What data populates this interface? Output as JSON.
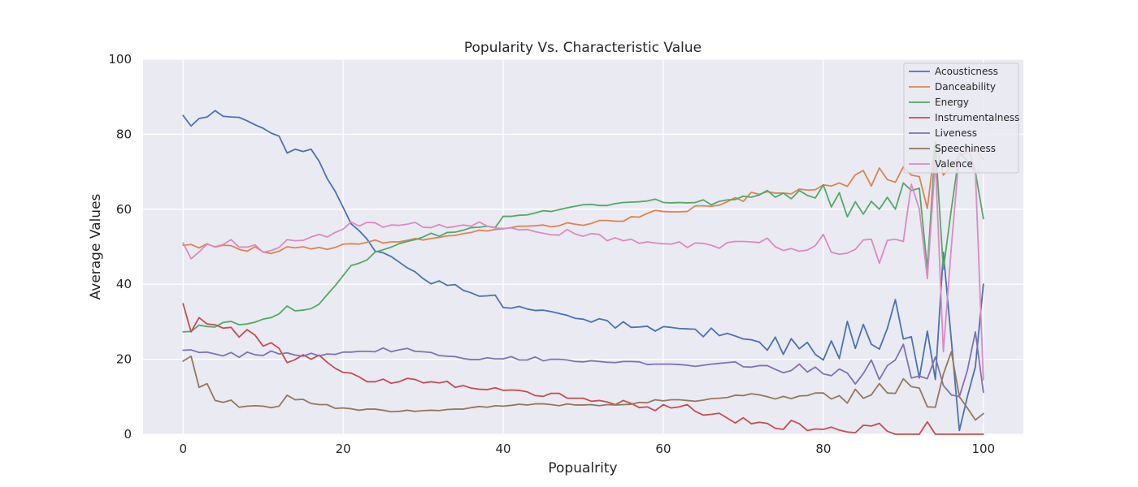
{
  "chart_data": {
    "type": "line",
    "title": "Popularity Vs. Characteristic Value",
    "xlabel": "Popualrity",
    "ylabel": "Average Values",
    "xlim": [
      -5,
      105
    ],
    "ylim": [
      0,
      100
    ],
    "xticks": [
      0,
      20,
      40,
      60,
      80,
      100
    ],
    "yticks": [
      0,
      20,
      40,
      60,
      80,
      100
    ],
    "grid": true,
    "legend_position": "top-right",
    "series": [
      {
        "name": "Acousticness",
        "color": "#4c72b0",
        "values": [
          85,
          82.2,
          84.2,
          84.6,
          86.3,
          84.8,
          84.6,
          84.5,
          83.6,
          82.5,
          81.6,
          80.3,
          79.5,
          75,
          76,
          75.4,
          76,
          72.8,
          68.2,
          64.8,
          60.5,
          56.1,
          54.3,
          52,
          48.8,
          48.4,
          47.4,
          45.9,
          44.4,
          43.3,
          41.5,
          40.1,
          40.9,
          39.7,
          39.9,
          38.4,
          37.7,
          36.8,
          36.9,
          37.1,
          33.8,
          33.6,
          34.1,
          33.4,
          33,
          33.1,
          32.7,
          32.2,
          31.7,
          30.9,
          30.7,
          29.9,
          30.8,
          30.3,
          28.3,
          30,
          28.5,
          28.6,
          28.8,
          27.5,
          28.7,
          28.5,
          28.2,
          28.1,
          28,
          26,
          28.3,
          26.3,
          26.9,
          26.2,
          25.4,
          25.2,
          24.6,
          22.4,
          25.9,
          21.3,
          25.5,
          22.8,
          24.5,
          21.3,
          19.8,
          24.9,
          20.2,
          30.1,
          22.9,
          29.3,
          24,
          22.7,
          28.2,
          35.9,
          25.4,
          26,
          15,
          27.5,
          14.6,
          48.5,
          25,
          1,
          10,
          18,
          40
        ]
      },
      {
        "name": "Danceability",
        "color": "#dd8452",
        "values": [
          50.4,
          50.6,
          49.7,
          50.8,
          49.9,
          50.4,
          50.3,
          49.3,
          48.8,
          50,
          48.6,
          48.2,
          48.8,
          50,
          49.7,
          50,
          49.4,
          49.8,
          49.3,
          49.8,
          50.7,
          50.8,
          50.7,
          51.2,
          51.8,
          51,
          51.3,
          51.3,
          51.7,
          52.2,
          51.8,
          52.2,
          52.5,
          52.9,
          53,
          53.5,
          53.8,
          54.4,
          54.2,
          54.6,
          54.8,
          55.1,
          55.5,
          55.5,
          55.6,
          55.8,
          55.3,
          55.6,
          56.4,
          56,
          55.7,
          56.2,
          57,
          57,
          56.8,
          56.8,
          58,
          57.9,
          58.9,
          59.7,
          59.4,
          59.3,
          59.3,
          59.4,
          60.9,
          60.9,
          60.8,
          61.1,
          62,
          63.1,
          62.1,
          64.5,
          64,
          64.7,
          64.3,
          64.3,
          64.1,
          65.4,
          65.1,
          65.2,
          66.5,
          66.2,
          67,
          66.1,
          69.2,
          70.3,
          66.2,
          71,
          67.9,
          67.2,
          71.3,
          69.1,
          68.7,
          60.2,
          78.1,
          69.1,
          71.5,
          74.2,
          75.2,
          76.1,
          73.3
        ]
      },
      {
        "name": "Energy",
        "color": "#55a868",
        "values": [
          27.3,
          27.4,
          29.1,
          28.7,
          28.6,
          29.8,
          30.1,
          29.2,
          29.4,
          29.9,
          30.7,
          31.1,
          32.1,
          34.2,
          32.9,
          33.1,
          33.5,
          34.7,
          37.2,
          39.6,
          42.3,
          45,
          45.6,
          46.5,
          48.6,
          49.2,
          49.9,
          50.8,
          51.4,
          51.9,
          52.6,
          53.6,
          52.8,
          53.8,
          53.9,
          54.4,
          55.1,
          55.2,
          55.5,
          55.1,
          58.1,
          58.1,
          58.4,
          58.5,
          59,
          59.6,
          59.4,
          59.9,
          60.4,
          60.8,
          61.2,
          61.3,
          61,
          61,
          61.5,
          61.8,
          61.9,
          62,
          62.2,
          62.7,
          61.8,
          61.7,
          61.8,
          61.7,
          61.8,
          62.5,
          61.2,
          62.1,
          62.5,
          62.6,
          63.5,
          63.2,
          63.8,
          65,
          63.2,
          64.3,
          62.8,
          65,
          63.7,
          63,
          66.5,
          60.6,
          64.4,
          58,
          62,
          58.7,
          62.1,
          60,
          63.2,
          60,
          67,
          65,
          65.6,
          44,
          77.5,
          44,
          60,
          75,
          73,
          70,
          57.5
        ]
      },
      {
        "name": "Instrumentalness",
        "color": "#c44e52",
        "values": [
          34.8,
          27.3,
          31.1,
          29.4,
          29.2,
          28.3,
          28.5,
          25.9,
          27.9,
          26.4,
          23.5,
          24.4,
          22.9,
          19.1,
          19.9,
          21.2,
          20,
          21.1,
          19.2,
          17.6,
          16.5,
          16.3,
          15.3,
          14,
          14,
          14.7,
          13.6,
          14,
          14.9,
          14.6,
          13.7,
          14,
          13.7,
          14.1,
          12.5,
          13,
          12.3,
          12,
          11.9,
          12.4,
          11.7,
          11.8,
          11.7,
          11.3,
          10.3,
          10.1,
          10.9,
          10.9,
          9.6,
          9.6,
          9.6,
          8.8,
          9,
          8.6,
          7.9,
          9,
          8.2,
          7.1,
          7.3,
          6.3,
          7.9,
          7,
          7.3,
          7.9,
          6.1,
          5.1,
          5.3,
          5.6,
          4.3,
          3,
          4.4,
          2.8,
          3.2,
          2.9,
          1.6,
          1.3,
          3.7,
          2.8,
          1,
          1.4,
          1.3,
          1.9,
          1.1,
          0.6,
          0.4,
          2.4,
          2.2,
          2.9,
          0.8,
          0,
          0,
          0,
          0,
          3.3,
          0,
          0,
          0,
          0,
          0,
          0,
          0
        ]
      },
      {
        "name": "Liveness",
        "color": "#8172b3",
        "values": [
          22.4,
          22.5,
          21.8,
          21.9,
          21.4,
          20.9,
          21.8,
          20.5,
          21.9,
          21.2,
          21,
          22.2,
          21.4,
          21.7,
          21.1,
          20.8,
          21.6,
          20.9,
          21.4,
          21.3,
          21.9,
          21.9,
          22.1,
          22.1,
          22,
          23,
          22,
          22.5,
          22.9,
          22.1,
          22,
          21.8,
          21,
          20.8,
          20.7,
          20.2,
          19.9,
          19.9,
          20.4,
          20.1,
          20.1,
          20.7,
          19.8,
          19.8,
          20.6,
          19.6,
          20,
          20,
          19.8,
          19.4,
          19.3,
          19.6,
          19.4,
          19.2,
          19.1,
          19.4,
          19.4,
          19.3,
          18.6,
          18.7,
          18.7,
          18.7,
          18.6,
          18.4,
          18.1,
          18.4,
          18.7,
          18.9,
          19.1,
          19.3,
          18,
          17.9,
          18.3,
          18.3,
          17.3,
          16.4,
          17,
          18.7,
          16.6,
          17.9,
          16.1,
          15.6,
          17.4,
          16.3,
          13.4,
          16.2,
          19.8,
          14.6,
          18.3,
          19.8,
          24,
          15,
          15.5,
          14.8,
          20.6,
          13,
          10.5,
          10,
          17,
          27.3,
          11.2
        ]
      },
      {
        "name": "Speechiness",
        "color": "#937860",
        "values": [
          19.5,
          20.8,
          12.5,
          13.5,
          9,
          8.5,
          9.1,
          7.2,
          7.5,
          7.6,
          7.5,
          7.1,
          7.5,
          10.4,
          9.2,
          9.3,
          8.2,
          7.9,
          7.9,
          6.9,
          7,
          6.8,
          6.4,
          6.7,
          6.7,
          6.4,
          6,
          6.1,
          6.4,
          6.1,
          6.3,
          6.4,
          6.3,
          6.6,
          6.7,
          6.7,
          7.1,
          7.4,
          7.2,
          7.6,
          7.5,
          7.7,
          8,
          7.8,
          8.1,
          8.1,
          7.9,
          7.6,
          8.1,
          7.8,
          7.8,
          7.9,
          7.6,
          7.9,
          7.8,
          7.9,
          8,
          8.5,
          8.4,
          9.2,
          8.9,
          9.2,
          9.2,
          9,
          8.8,
          9.1,
          9.5,
          9.6,
          9.8,
          10.4,
          10.3,
          10.8,
          10.5,
          10,
          9.4,
          10.1,
          9.5,
          10.2,
          10.3,
          11,
          11,
          9.4,
          10.3,
          8.3,
          12,
          9.6,
          10.5,
          13.5,
          11,
          10.9,
          14.8,
          12.7,
          12.3,
          7.3,
          7.2,
          16,
          22,
          10,
          7,
          3.8,
          5.5
        ]
      },
      {
        "name": "Valence",
        "color": "#da8bc3",
        "values": [
          51,
          46.8,
          48.6,
          50.7,
          50,
          50.6,
          51.9,
          49.9,
          49.9,
          50.5,
          48.5,
          49,
          49.8,
          51.9,
          51.6,
          51.7,
          52.6,
          53.3,
          52.6,
          53.8,
          54.7,
          56.6,
          55.5,
          56.5,
          56.4,
          55.2,
          55.8,
          55.7,
          56,
          56.5,
          55.2,
          55.1,
          55.9,
          55.1,
          55.4,
          55.8,
          55.5,
          56.6,
          55.5,
          55,
          54.9,
          55,
          54.5,
          54.6,
          54,
          53.6,
          53.2,
          53.1,
          54.6,
          53.4,
          52.8,
          53.5,
          53.3,
          51.6,
          52.4,
          51.6,
          52,
          50.9,
          51.3,
          51,
          50.8,
          50.7,
          51.3,
          49.8,
          51,
          50.9,
          50.4,
          49.6,
          51.1,
          51.4,
          51.4,
          51.3,
          51.1,
          52.3,
          50,
          49,
          49.5,
          48.8,
          49.1,
          50.3,
          53.3,
          48.5,
          48,
          48.3,
          49.3,
          51.8,
          52,
          45.6,
          51.7,
          52,
          51.4,
          66.7,
          60,
          41.5,
          73,
          22,
          50,
          75,
          77,
          70,
          14.5
        ]
      }
    ]
  }
}
